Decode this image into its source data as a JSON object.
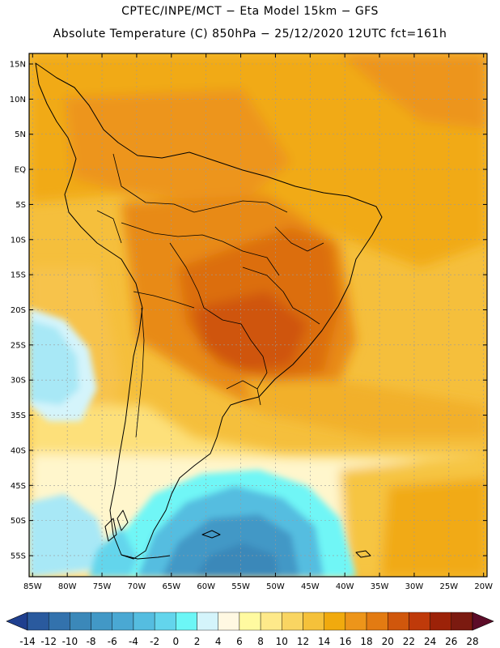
{
  "header": {
    "line1": "CPTEC/INPE/MCT −  Eta Model 15km − GFS",
    "line2": "Absolute Temperature (C) 850hPa − 25/12/2020 12UTC fct=161h"
  },
  "map": {
    "lat_labels": [
      "15N",
      "10N",
      "5N",
      "EQ",
      "5S",
      "10S",
      "15S",
      "20S",
      "25S",
      "30S",
      "35S",
      "40S",
      "45S",
      "50S",
      "55S"
    ],
    "lat_values": [
      15,
      10,
      5,
      0,
      -5,
      -10,
      -15,
      -20,
      -25,
      -30,
      -35,
      -40,
      -45,
      -50,
      -55
    ],
    "lon_labels": [
      "85W",
      "80W",
      "75W",
      "70W",
      "65W",
      "60W",
      "55W",
      "50W",
      "45W",
      "40W",
      "35W",
      "30W",
      "25W",
      "20W"
    ],
    "lon_values": [
      -85,
      -80,
      -75,
      -70,
      -65,
      -60,
      -55,
      -50,
      -45,
      -40,
      -35,
      -30,
      -25,
      -20
    ],
    "lon_range": [
      -85.5,
      -19.5
    ],
    "lat_range": [
      -58,
      16.5
    ]
  },
  "colorbar": {
    "labels": [
      "-14",
      "-12",
      "-10",
      "-8",
      "-6",
      "-4",
      "-2",
      "0",
      "2",
      "4",
      "6",
      "8",
      "10",
      "12",
      "14",
      "16",
      "18",
      "20",
      "22",
      "24",
      "26",
      "28"
    ],
    "colors": [
      "#1f3f8f",
      "#2a5a9e",
      "#3372ad",
      "#3b88b9",
      "#4298c6",
      "#4aa8d3",
      "#55bde0",
      "#63d5ec",
      "#6cf6f6",
      "#d4f4fb",
      "#fff8e2",
      "#fffaa0",
      "#fee98a",
      "#f9d562",
      "#f5c13a",
      "#f1aa0e",
      "#ed951a",
      "#e37b12",
      "#d0570c",
      "#bf3a0a",
      "#9c2208",
      "#7b1a10",
      "#5c0c28"
    ]
  }
}
